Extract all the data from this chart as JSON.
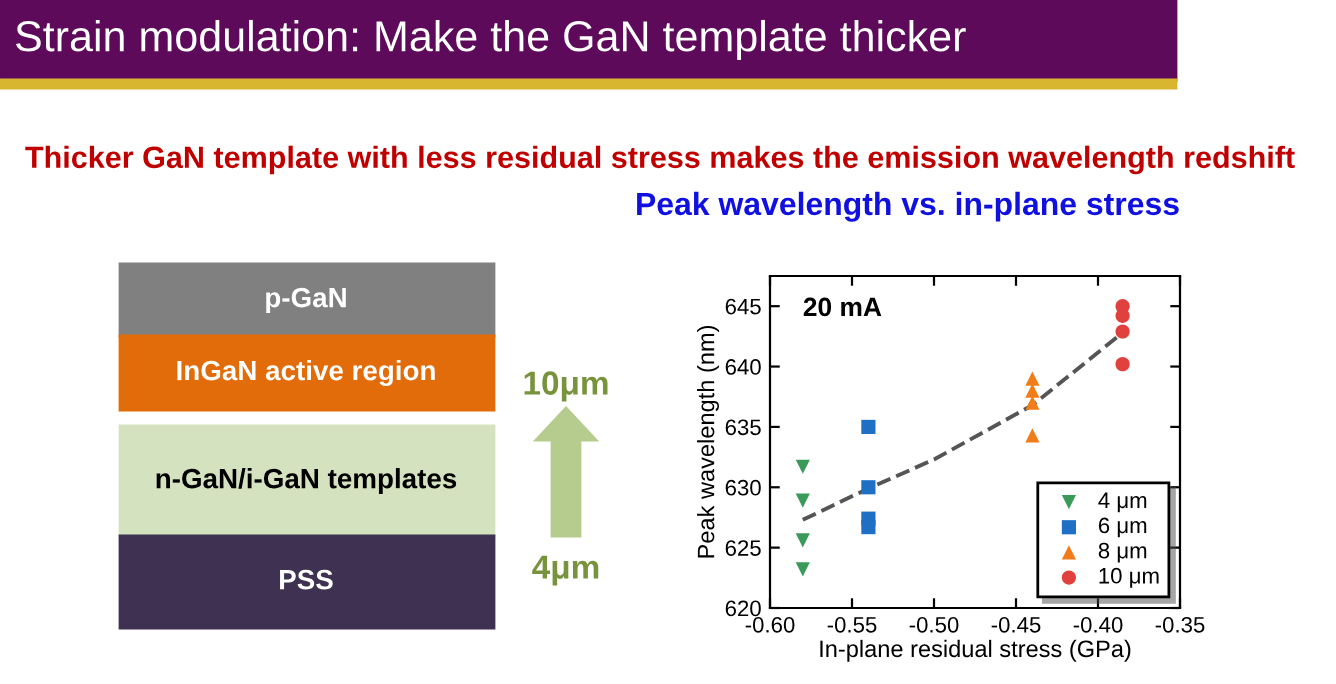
{
  "chart_data": {
    "type": "scatter",
    "title": "Peak wavelength vs. in-plane stress",
    "xlabel": "In-plane residual stress (GPa)",
    "ylabel": "Peak wavelength (nm)",
    "annotations": [
      "Strain modulation: Make the GaN template thicker",
      "Thicker GaN template with less residual stress makes the emission wavelength redshift",
      "p-GaN",
      "InGaN active region",
      "n-GaN/i-GaN templates",
      "PSS",
      "10μm",
      "4μm",
      "20 mA"
    ],
    "series": [
      {
        "name": "4 μm",
        "color": "#3a9a5a",
        "marker": "triangle_down",
        "x": [
          -0.58,
          -0.58,
          -0.58,
          -0.58
        ],
        "values": [
          631.7,
          628.9,
          625.6,
          623.2
        ]
      },
      {
        "name": "6 μm",
        "color": "#1f6fc4",
        "marker": "square",
        "x": [
          -0.54,
          -0.54,
          -0.54,
          -0.54
        ],
        "values": [
          635.0,
          630.0,
          627.4,
          626.7
        ]
      },
      {
        "name": "8 μm",
        "color": "#f07d1a",
        "marker": "triangle",
        "x": [
          -0.44,
          -0.44,
          -0.44,
          -0.44
        ],
        "values": [
          639.0,
          638.0,
          637.0,
          634.3
        ]
      },
      {
        "name": "10 μm",
        "color": "#e0403e",
        "marker": "circle",
        "x": [
          -0.385,
          -0.385,
          -0.385,
          -0.385
        ],
        "values": [
          645.0,
          644.2,
          642.9,
          640.2
        ]
      },
      {
        "type": "line",
        "color": "#555555",
        "line_style": "dashed",
        "x": [
          -0.58,
          -0.54,
          -0.5,
          -0.44,
          -0.385
        ],
        "values": [
          627.3,
          629.9,
          632.3,
          636.8,
          642.8
        ]
      }
    ],
    "xlim": [
      -0.6,
      -0.35
    ],
    "xticks": [
      {
        "value": -0.6,
        "label": "-0.60"
      },
      {
        "value": -0.55,
        "label": "-0.55"
      },
      {
        "value": -0.5,
        "label": "-0.50"
      },
      {
        "value": -0.45,
        "label": "-0.45"
      },
      {
        "value": -0.4,
        "label": "-0.40"
      },
      {
        "value": -0.35,
        "label": "-0.35"
      }
    ],
    "ylim": [
      620,
      647.5
    ],
    "yticks": [
      620,
      625,
      630,
      635,
      640,
      645
    ],
    "grid": false,
    "legend": "bottom right"
  }
}
